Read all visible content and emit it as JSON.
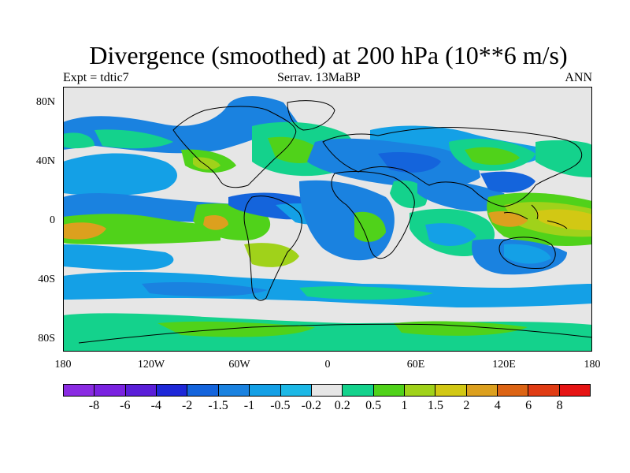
{
  "header": {
    "title": "Divergence (smoothed) at 200 hPa (10**6 m/s)",
    "expt": "Expt = tdtic7",
    "center": "Serrav.  13MaBP",
    "season": "ANN"
  },
  "axes": {
    "y_labels": [
      "80N",
      "40N",
      "0",
      "40S",
      "80S"
    ],
    "x_labels": [
      "180",
      "120W",
      "60W",
      "0",
      "60E",
      "120E",
      "180"
    ]
  },
  "colorbar": {
    "colors": [
      "#8a2be2",
      "#7a22e0",
      "#5a1ed8",
      "#1e28d8",
      "#1464dc",
      "#1a82e0",
      "#14a0e6",
      "#1cb8e6",
      "#e6e6e6",
      "#14d28c",
      "#50d21a",
      "#a0d21a",
      "#d2c814",
      "#dca01e",
      "#dc6414",
      "#e03c14",
      "#e61414"
    ],
    "labels": [
      "-8",
      "-6",
      "-4",
      "-2",
      "-1.5",
      "-1",
      "-0.5",
      "-0.2",
      "0.2",
      "0.5",
      "1",
      "1.5",
      "2",
      "4",
      "6",
      "8"
    ]
  },
  "palette": {
    "neutral": "#e6e6e6",
    "strong_neg": "#1464dc",
    "neg": "#1a82e0",
    "weak_neg": "#14a0e6",
    "very_weak_neg": "#1cb8e6",
    "weak_pos": "#14d28c",
    "pos": "#50d21a",
    "mid_pos": "#a0d21a",
    "strong_pos": "#d2c814",
    "orange": "#dca01e",
    "red": "#e03c14"
  }
}
